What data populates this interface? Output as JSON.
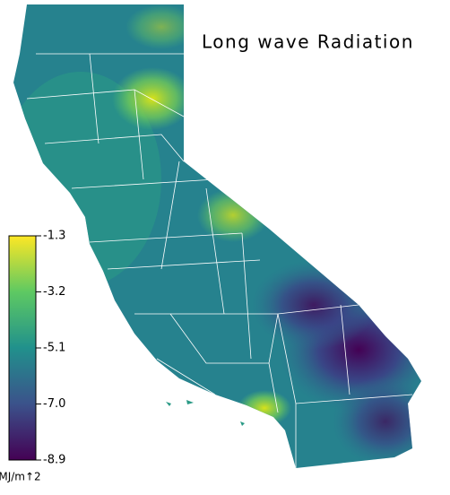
{
  "title": "Long wave Radiation",
  "colorbar": {
    "lim": [
      -8.9,
      -1.3
    ],
    "ticks": [
      -1.3,
      -3.2,
      -5.1,
      {
        "value": -7,
        "label": "-7.0"
      },
      -8.9
    ],
    "unit": "MJ/m↑2"
  }
}
